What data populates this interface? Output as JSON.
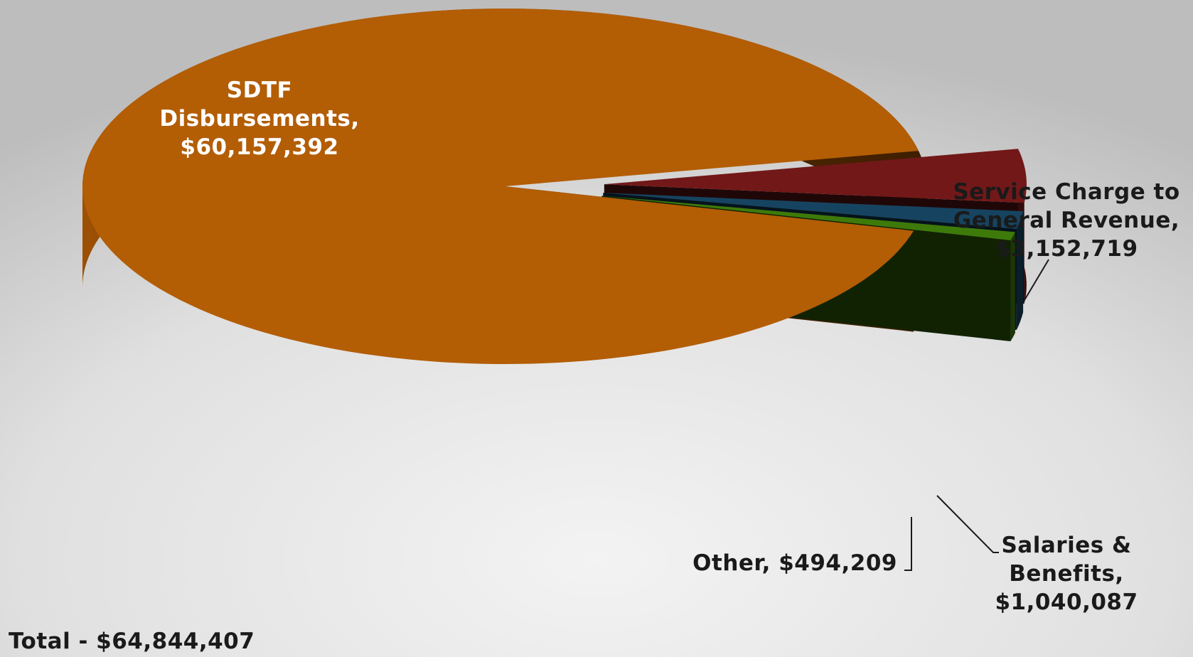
{
  "chart_data": {
    "type": "pie",
    "style": "3d-exploded",
    "slices": [
      {
        "name": "SDTF Disbursements",
        "value": 60157392,
        "color": "#b35d05",
        "label_lines": [
          "SDTF",
          "Disbursements,",
          "$60,157,392"
        ]
      },
      {
        "name": "Service Charge to General Revenue",
        "value": 3152719,
        "color": "#721818",
        "label_lines": [
          "Service Charge to",
          "General Revenue,",
          "$3,152,719"
        ]
      },
      {
        "name": "Salaries & Benefits",
        "value": 1040087,
        "color": "#164460",
        "label_lines": [
          "Salaries &",
          "Benefits,",
          "$1,040,087"
        ]
      },
      {
        "name": "Other",
        "value": 494209,
        "color": "#3e7a0a",
        "label_lines": [
          "Other, $494,209"
        ]
      }
    ],
    "total_label": "Total - $64,844,407",
    "legend": "none"
  }
}
